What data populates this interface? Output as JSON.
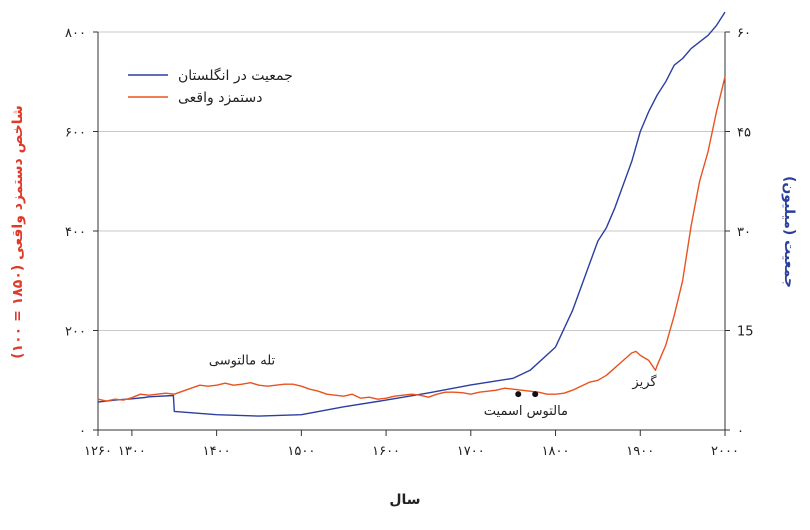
{
  "chart_data": {
    "type": "line",
    "xlabel": "سال",
    "ylabel_left": "شاخص دستمزد واقعی (۱۸۵۰ = ۱۰۰)",
    "ylabel_right": "جمعیت (میلیون)",
    "xlim": [
      1260,
      2000
    ],
    "ylim_left": [
      0,
      800
    ],
    "ylim_right": [
      0,
      60
    ],
    "x_ticks": [
      1260,
      1300,
      1400,
      1500,
      1600,
      1700,
      1800,
      1900,
      2000
    ],
    "x_tick_labels": [
      "۱۲۶۰",
      "۱۳۰۰",
      "۱۴۰۰",
      "۱۵۰۰",
      "۱۶۰۰",
      "۱۷۰۰",
      "۱۸۰۰",
      "۱۹۰۰",
      "۲۰۰۰"
    ],
    "y_left_ticks": [
      0,
      200,
      400,
      600,
      800
    ],
    "y_left_tick_labels": [
      "۰",
      "۲۰۰",
      "۴۰۰",
      "۶۰۰",
      "۸۰۰"
    ],
    "y_right_ticks": [
      0,
      15,
      30,
      45,
      60
    ],
    "y_right_tick_labels": [
      "۰",
      "15",
      "۳۰",
      "۴۵",
      "۶۰"
    ],
    "grid": true,
    "legend": "top-left",
    "colors": {
      "population": "#2b3fa0",
      "wage": "#e8531f",
      "left_axis_label": "#e03a2a",
      "right_axis_label": "#2b3fa0"
    },
    "series": [
      {
        "name": "جمعیت در انگلستان",
        "axis": "right",
        "x": [
          1260,
          1280,
          1300,
          1315,
          1320,
          1349,
          1350,
          1400,
          1450,
          1500,
          1550,
          1600,
          1650,
          1700,
          1750,
          1770,
          1800,
          1820,
          1840,
          1850,
          1860,
          1870,
          1880,
          1890,
          1900,
          1910,
          1920,
          1930,
          1940,
          1950,
          1960,
          1970,
          1980,
          1990,
          2000
        ],
        "values": [
          4.2,
          4.5,
          4.7,
          4.9,
          5.0,
          5.2,
          2.8,
          2.3,
          2.1,
          2.3,
          3.5,
          4.5,
          5.6,
          6.8,
          7.8,
          9.0,
          12.5,
          18.0,
          25.0,
          28.5,
          30.5,
          33.5,
          37.0,
          40.5,
          45.0,
          48.0,
          50.5,
          52.5,
          55.0,
          56.0,
          57.5,
          58.5,
          59.5,
          61.0,
          63.0
        ]
      },
      {
        "name": "دستمزد واقعی",
        "axis": "left",
        "x": [
          1260,
          1270,
          1280,
          1290,
          1300,
          1310,
          1320,
          1330,
          1340,
          1350,
          1360,
          1370,
          1380,
          1390,
          1400,
          1410,
          1420,
          1430,
          1440,
          1450,
          1460,
          1470,
          1480,
          1490,
          1500,
          1510,
          1520,
          1530,
          1540,
          1550,
          1560,
          1570,
          1580,
          1590,
          1600,
          1610,
          1620,
          1630,
          1640,
          1650,
          1660,
          1670,
          1680,
          1690,
          1700,
          1710,
          1720,
          1730,
          1740,
          1750,
          1760,
          1770,
          1780,
          1790,
          1800,
          1810,
          1820,
          1830,
          1840,
          1850,
          1860,
          1870,
          1880,
          1890,
          1895,
          1900,
          1910,
          1918,
          1920,
          1930,
          1940,
          1950,
          1960,
          1970,
          1980,
          1990,
          2000
        ],
        "values": [
          62,
          58,
          62,
          60,
          65,
          72,
          70,
          72,
          74,
          72,
          78,
          84,
          90,
          88,
          90,
          94,
          90,
          92,
          95,
          90,
          88,
          90,
          92,
          92,
          88,
          82,
          78,
          72,
          70,
          68,
          72,
          64,
          66,
          62,
          64,
          68,
          70,
          72,
          70,
          66,
          72,
          76,
          76,
          75,
          72,
          76,
          78,
          80,
          84,
          82,
          80,
          78,
          76,
          72,
          72,
          74,
          80,
          88,
          96,
          100,
          110,
          125,
          140,
          155,
          158,
          150,
          140,
          120,
          130,
          170,
          230,
          300,
          410,
          500,
          560,
          640,
          710
        ]
      }
    ],
    "annotations": [
      {
        "text": "تله مالتوسی",
        "x": 1430,
        "y": 132
      },
      {
        "text": "مالتوس اسمیت",
        "x": 1765,
        "y": 30
      },
      {
        "text": "گریز",
        "x": 1905,
        "y": 88
      }
    ],
    "markers": [
      {
        "x": 1756,
        "y": 72
      },
      {
        "x": 1776,
        "y": 72
      }
    ]
  }
}
